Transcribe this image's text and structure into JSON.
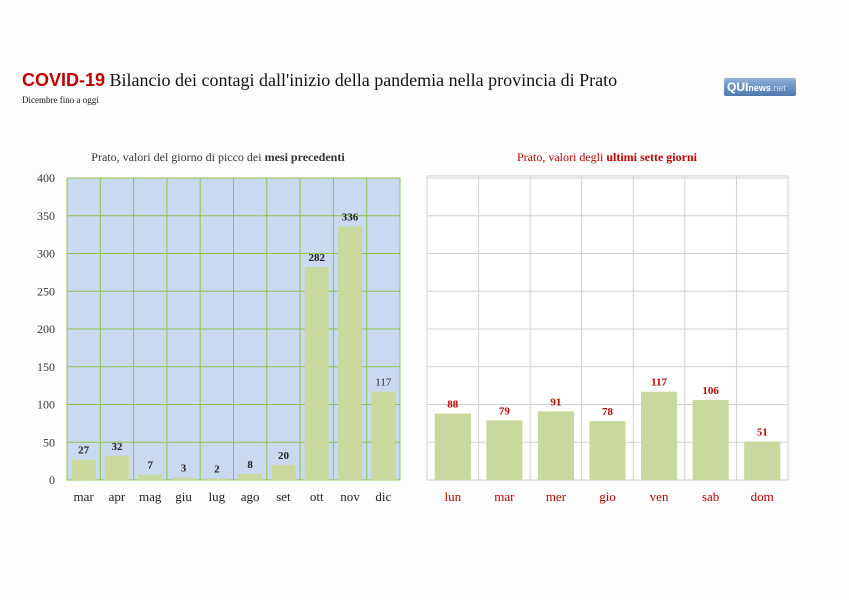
{
  "header": {
    "title_prefix": "COVID-19",
    "title": " Bilancio dei contagi dall'inizio della pandemia nella provincia di Prato",
    "subtitle": "Dicembre fino a oggi",
    "logo": "QUInews.net"
  },
  "colors": {
    "bar": "#c9d89c",
    "left_bg": "#c9d9ef",
    "left_grid": "#8cc34a",
    "right_grid": "#d0d0d0",
    "accent": "#c00000"
  },
  "chart_data": [
    {
      "type": "bar",
      "title_plain": "Prato, valori del giorno di picco dei ",
      "title_bold": "mesi precedenti",
      "categories": [
        "mar",
        "apr",
        "mag",
        "giu",
        "lug",
        "ago",
        "set",
        "ott",
        "nov",
        "dic"
      ],
      "values": [
        27,
        32,
        7,
        3,
        2,
        8,
        20,
        282,
        336,
        117
      ],
      "ylim": [
        0,
        400
      ],
      "yticks": [
        0,
        50,
        100,
        150,
        200,
        250,
        300,
        350,
        400
      ],
      "grid": true
    },
    {
      "type": "bar",
      "title_plain": "Prato, valori degli ",
      "title_bold": "ultimi sette giorni",
      "categories": [
        "lun",
        "mar",
        "mer",
        "gio",
        "ven",
        "sab",
        "dom"
      ],
      "values": [
        88,
        79,
        91,
        78,
        117,
        106,
        51
      ],
      "ylim": [
        0,
        400
      ],
      "grid": true
    }
  ]
}
